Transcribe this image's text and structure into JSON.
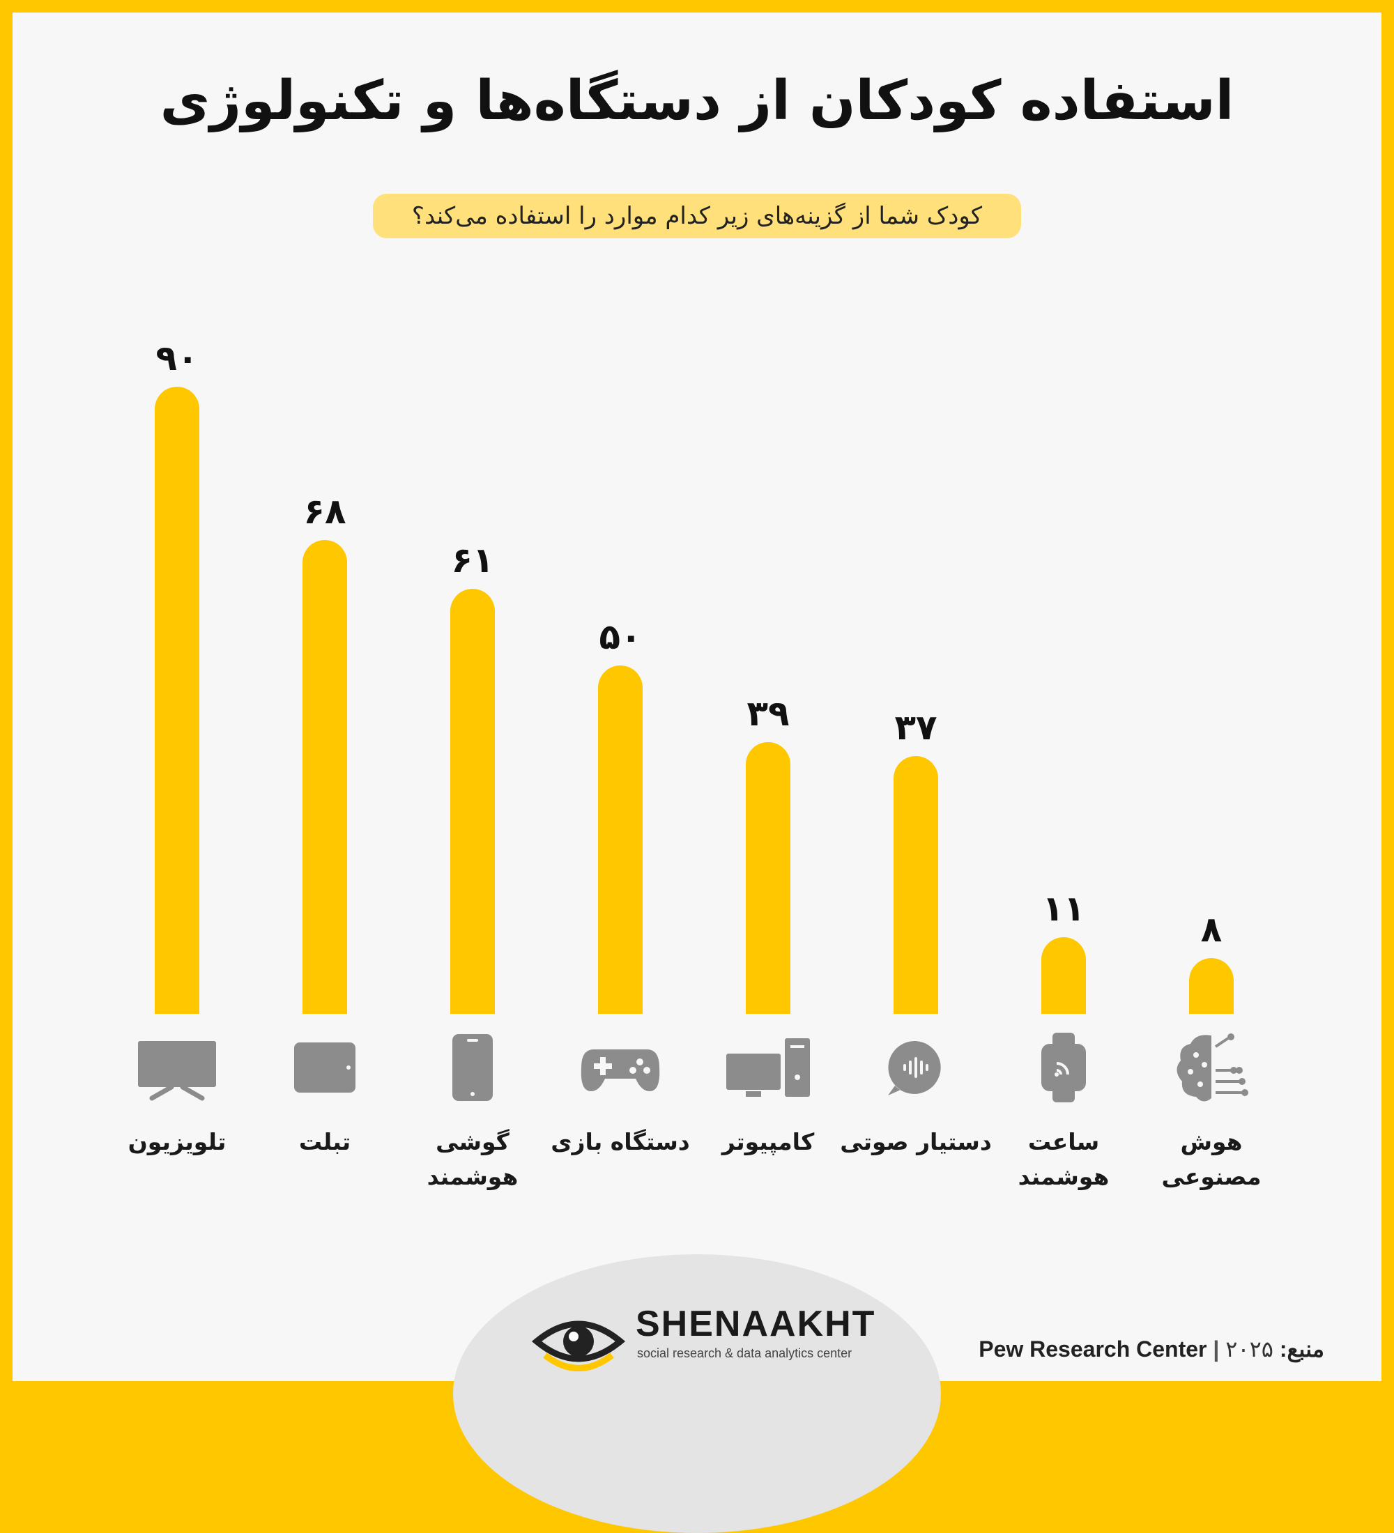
{
  "header": {
    "title": "استفاده کودکان از دستگاه‌ها و تکنولوژی",
    "subtitle": "کودک شما از گزینه‌های زیر کدام موارد را استفاده می‌کند؟"
  },
  "chart_data": {
    "type": "bar",
    "categories": [
      "تلویزیون",
      "تبلت",
      "گوشی هوشمند",
      "دستگاه بازی",
      "کامپیوتر",
      "دستیار صوتی",
      "ساعت هوشمند",
      "هوش مصنوعی"
    ],
    "category_lines": [
      [
        "تلویزیون"
      ],
      [
        "تبلت"
      ],
      [
        "گوشی",
        "هوشمند"
      ],
      [
        "دستگاه بازی"
      ],
      [
        "کامپیوتر"
      ],
      [
        "دستیار صوتی"
      ],
      [
        "ساعت",
        "هوشمند"
      ],
      [
        "هوش",
        "مصنوعی"
      ]
    ],
    "values": [
      90,
      68,
      61,
      50,
      39,
      37,
      11,
      8
    ],
    "value_labels": [
      "۹۰",
      "۶۸",
      "۶۱",
      "۵۰",
      "۳۹",
      "۳۷",
      "۱۱",
      "۸"
    ],
    "icons": [
      "tv-icon",
      "tablet-icon",
      "smartphone-icon",
      "gamepad-icon",
      "computer-icon",
      "voice-assistant-icon",
      "smartwatch-icon",
      "ai-brain-icon"
    ],
    "ylim": [
      0,
      90
    ],
    "grid": false,
    "bar_color": "#FFC700",
    "icon_color": "#8C8C8C"
  },
  "brand": {
    "name": "SHENAAKHT",
    "tagline": "social research & data analytics center"
  },
  "source": {
    "label": "منبع:",
    "year": "۲۰۲۵",
    "org": "Pew Research Center"
  },
  "colors": {
    "accent": "#FFC700",
    "background": "#F7F7F7",
    "pill": "#FFE07A"
  }
}
